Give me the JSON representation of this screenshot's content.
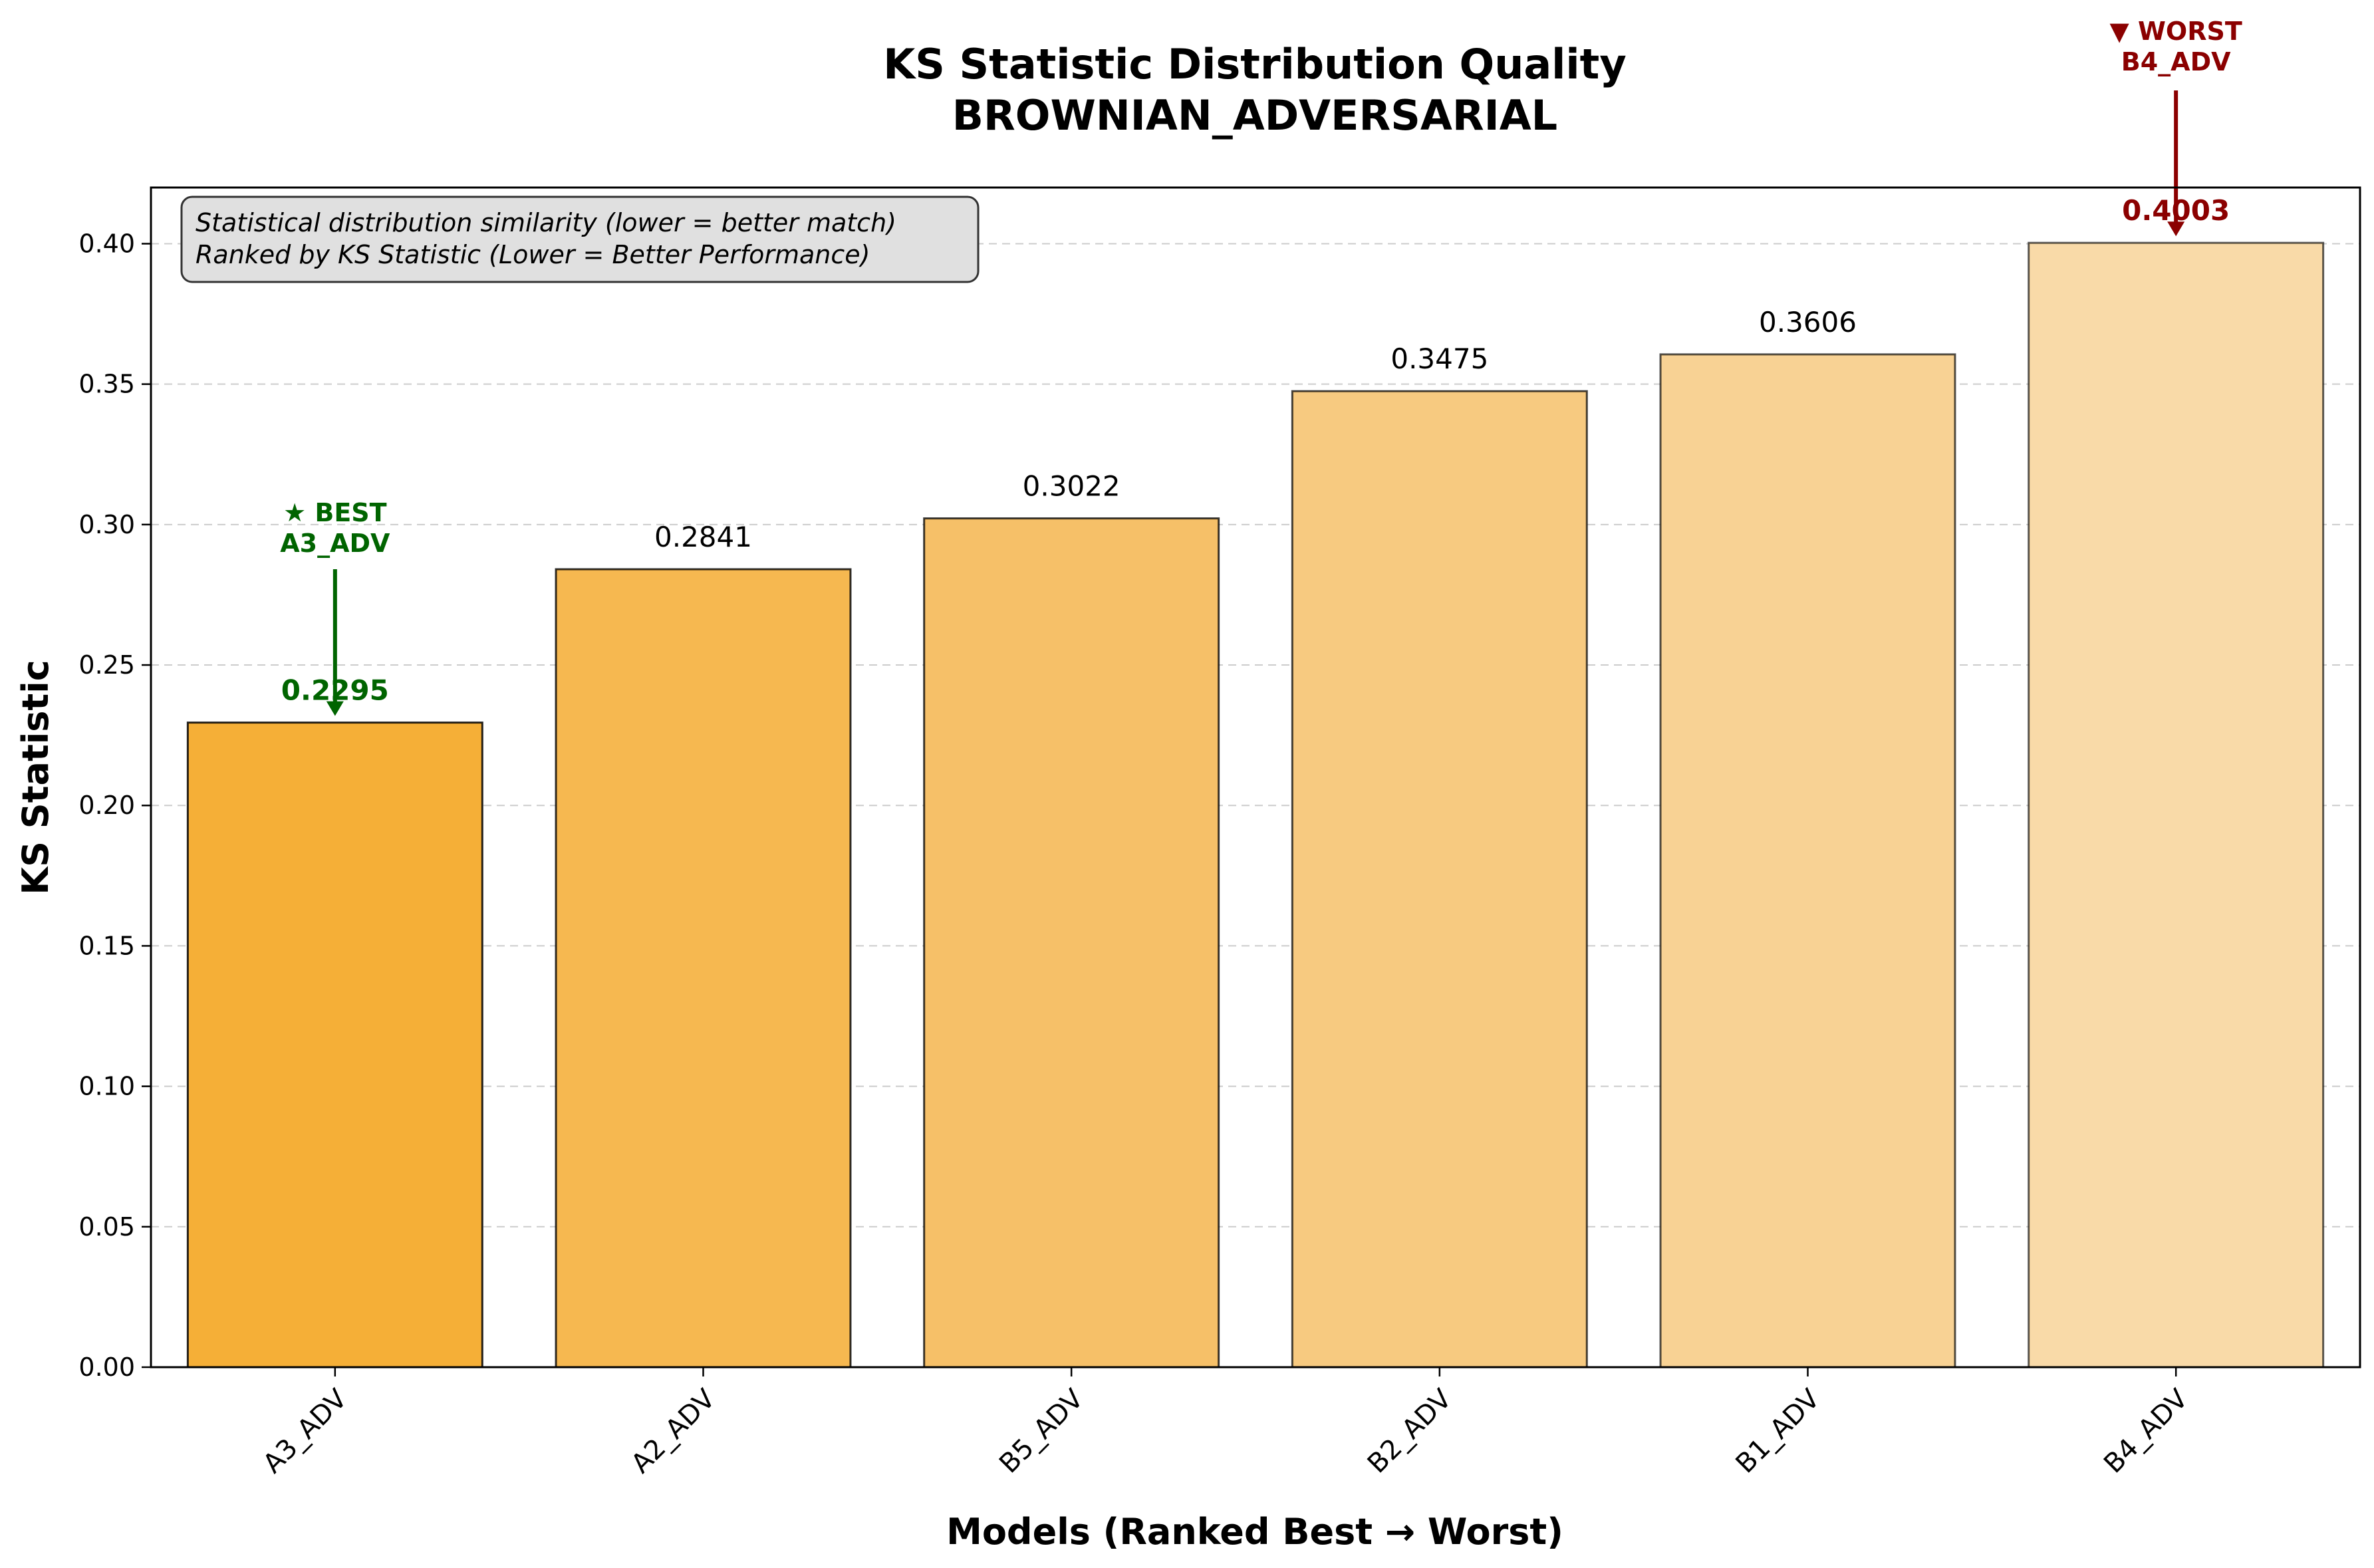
{
  "chart_data": {
    "type": "bar",
    "title_line1": "KS Statistic Distribution Quality",
    "title_line2": "BROWNIAN_ADVERSARIAL",
    "xlabel": "Models (Ranked Best → Worst)",
    "ylabel": "KS Statistic",
    "ylim": [
      0,
      0.42
    ],
    "yticks": [
      "0.00",
      "0.05",
      "0.10",
      "0.15",
      "0.20",
      "0.25",
      "0.30",
      "0.35",
      "0.40"
    ],
    "ytick_values": [
      0,
      0.05,
      0.1,
      0.15,
      0.2,
      0.25,
      0.3,
      0.35,
      0.4
    ],
    "grid": "horizontal dashed",
    "categories": [
      "A3_ADV",
      "A2_ADV",
      "B5_ADV",
      "B2_ADV",
      "B1_ADV",
      "B4_ADV"
    ],
    "values": [
      0.2295,
      0.2841,
      0.3022,
      0.3475,
      0.3606,
      0.4003
    ],
    "value_labels": [
      "0.2295",
      "0.2841",
      "0.3022",
      "0.3475",
      "0.3606",
      "0.4003"
    ],
    "bar_colors": [
      "#F5AF37",
      "#F6B850",
      "#F6C068",
      "#F7CA80",
      "#F8D294",
      "#F9DAA8"
    ],
    "bar_opacity": [
      1.0,
      0.95,
      0.9,
      0.85,
      0.8,
      0.75
    ],
    "info_box": {
      "line1": "Statistical distribution similarity (lower = better match)",
      "line2": "Ranked by KS Statistic (Lower = Better Performance)"
    },
    "best": {
      "label_line1": "★ BEST",
      "label_line2": "A3_ADV",
      "color": "#006400"
    },
    "worst": {
      "label_line1": "▼ WORST",
      "label_line2": "B4_ADV",
      "color": "#8B0000"
    }
  }
}
